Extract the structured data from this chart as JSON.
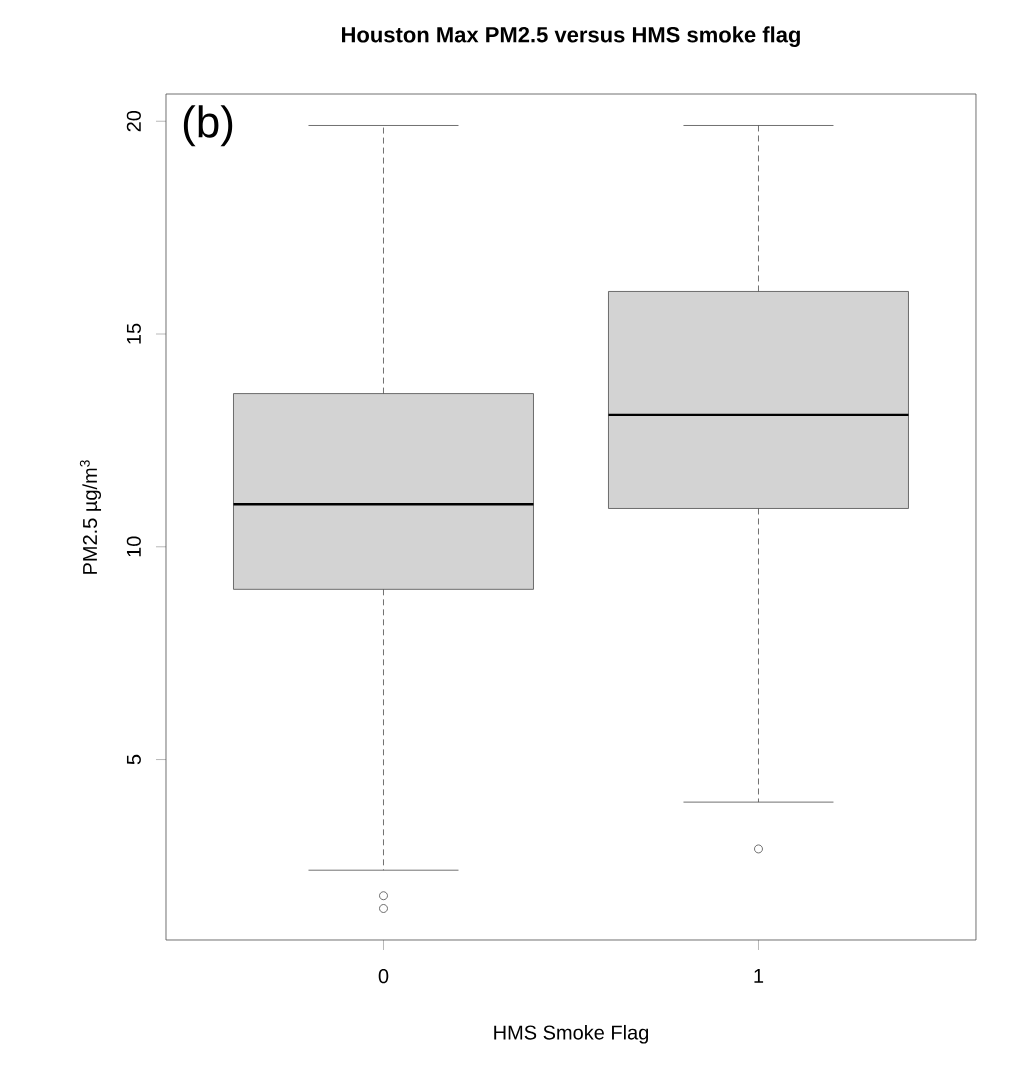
{
  "chart_data": {
    "type": "box",
    "title": "Houston Max PM2.5 versus HMS smoke flag",
    "xlabel": "HMS Smoke Flag",
    "ylabel": "PM2.5 µg/m$^{3}$",
    "annotations": [
      "(b)"
    ],
    "categories": [
      "0",
      "1"
    ],
    "color": "#d3d3d3",
    "boxes": [
      {
        "low": 2.4,
        "q1": 9.0,
        "median": 11.0,
        "q3": 13.6,
        "high": 19.9,
        "outliers": [
          1.8,
          1.5
        ]
      },
      {
        "low": 4.0,
        "q1": 10.9,
        "median": 13.1,
        "q3": 16.0,
        "high": 19.9,
        "outliers": [
          2.9
        ]
      }
    ],
    "ylim": [
      0.76,
      20.64
    ],
    "yticks": [
      5,
      10,
      15,
      20
    ]
  }
}
